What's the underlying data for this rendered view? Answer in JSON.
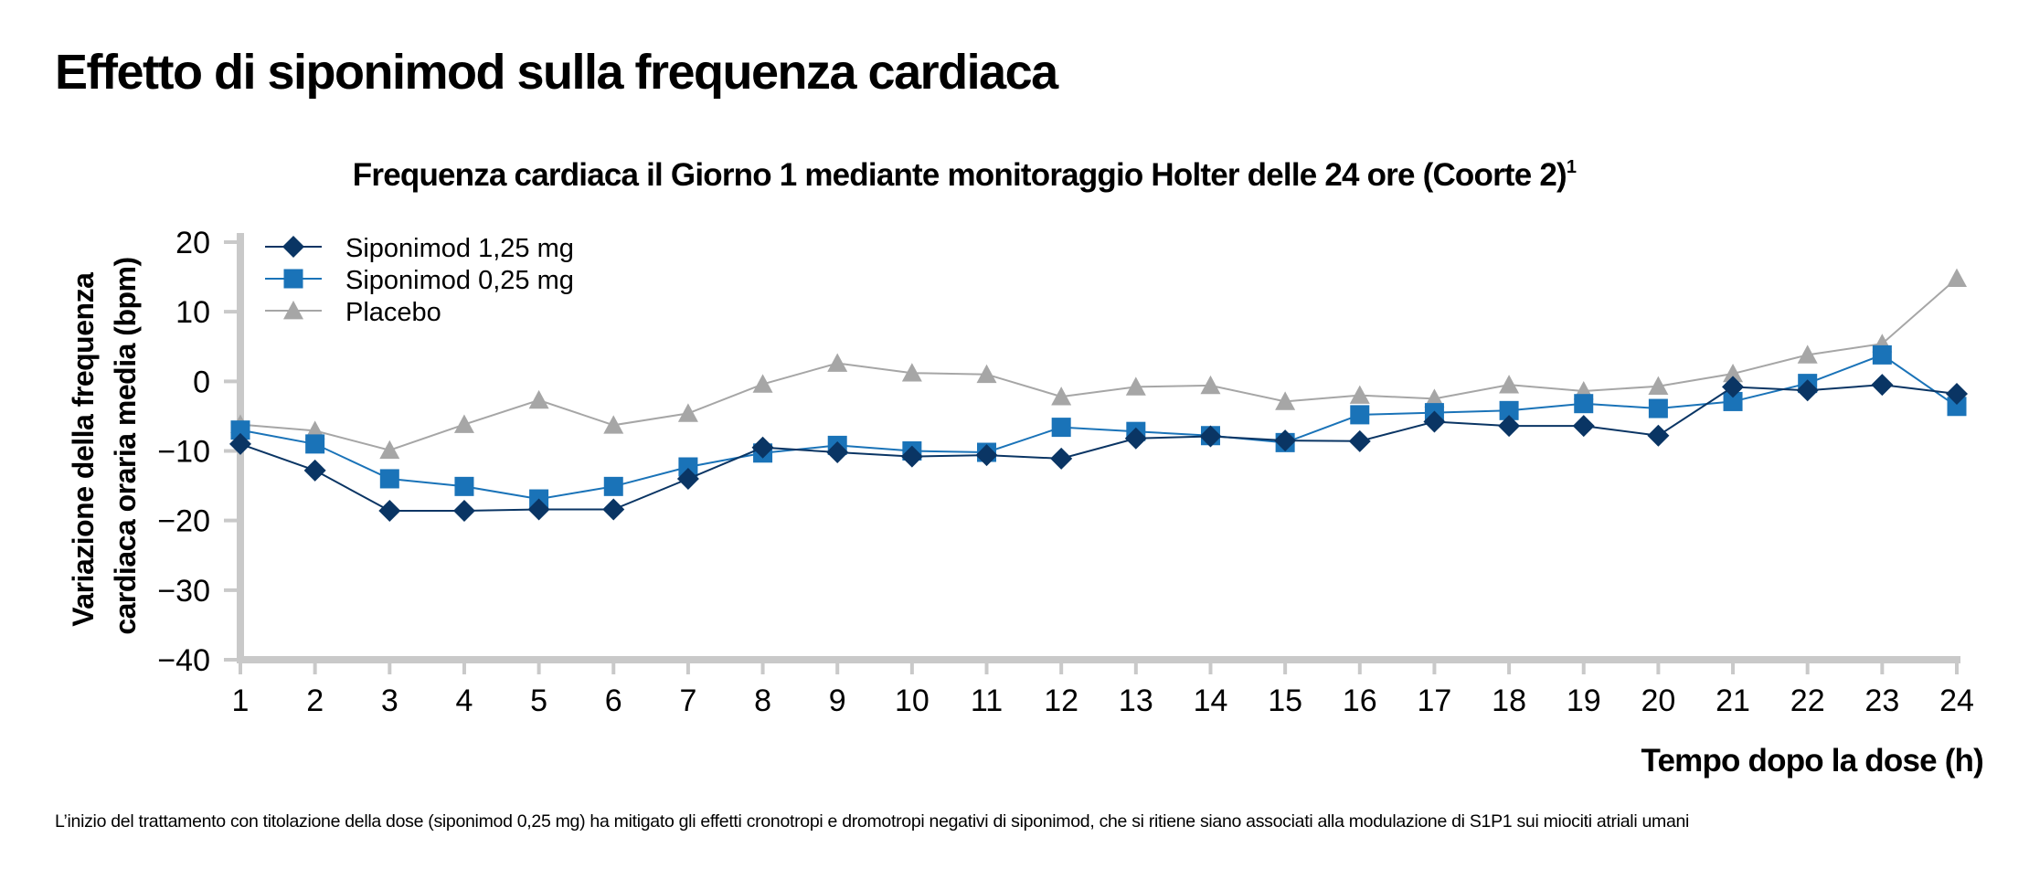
{
  "page": {
    "title": "Effetto di siponimod sulla frequenza cardiaca",
    "footnote": "L’inizio del trattamento con titolazione della dose (siponimod 0,25 mg) ha mitigato gli effetti cronotropi e dromotropi negativi di siponimod, che si ritiene siano associati alla modulazione di S1P1 sui miociti atriali umani"
  },
  "chart_data": {
    "type": "line",
    "title": "Frequenza cardiaca il Giorno 1 mediante monitoraggio Holter delle 24 ore (Coorte 2)",
    "title_superscript": "1",
    "xlabel": "Tempo dopo la dose (h)",
    "ylabel_lines": [
      "Variazione della frequenza",
      "cardiaca oraria media (bpm)"
    ],
    "x": [
      1,
      2,
      3,
      4,
      5,
      6,
      7,
      8,
      9,
      10,
      11,
      12,
      13,
      14,
      15,
      16,
      17,
      18,
      19,
      20,
      21,
      22,
      23,
      24
    ],
    "xlim": [
      1,
      24
    ],
    "ylim": [
      -40,
      20
    ],
    "yticks": [
      20,
      10,
      0,
      -10,
      -20,
      -30,
      -40
    ],
    "ytick_labels": [
      "20",
      "10",
      "0",
      "−10",
      "−20",
      "−30",
      "−40"
    ],
    "grid": false,
    "legend_position": "top-left",
    "series": [
      {
        "name": "Siponimod 1,25 mg",
        "marker": "diamond",
        "color": "#0a3564",
        "values": [
          -9,
          -12.8,
          -18.6,
          -18.6,
          -18.4,
          -18.4,
          -14,
          -9.5,
          -10.2,
          -10.8,
          -10.6,
          -11.1,
          -8.2,
          -7.9,
          -8.5,
          -8.6,
          -5.8,
          -6.4,
          -6.4,
          -7.8,
          -0.8,
          -1.3,
          -0.5,
          -1.8
        ]
      },
      {
        "name": "Siponimod 0,25 mg",
        "marker": "square",
        "color": "#1a73b8",
        "values": [
          -7,
          -9,
          -14,
          -15.1,
          -16.9,
          -15.1,
          -12.3,
          -10.3,
          -9.2,
          -10,
          -10.2,
          -6.6,
          -7.2,
          -7.8,
          -8.8,
          -4.8,
          -4.5,
          -4.2,
          -3.2,
          -3.9,
          -2.9,
          -0.3,
          3.8,
          -3.6
        ]
      },
      {
        "name": "Placebo",
        "marker": "triangle",
        "color": "#a6a6a6",
        "values": [
          -6.2,
          -7.1,
          -9.9,
          -6.2,
          -2.7,
          -6.3,
          -4.6,
          -0.4,
          2.6,
          1.2,
          1,
          -2.2,
          -0.8,
          -0.6,
          -2.9,
          -2,
          -2.5,
          -0.5,
          -1.4,
          -0.7,
          1.1,
          3.8,
          5.4,
          14.8
        ]
      }
    ]
  }
}
